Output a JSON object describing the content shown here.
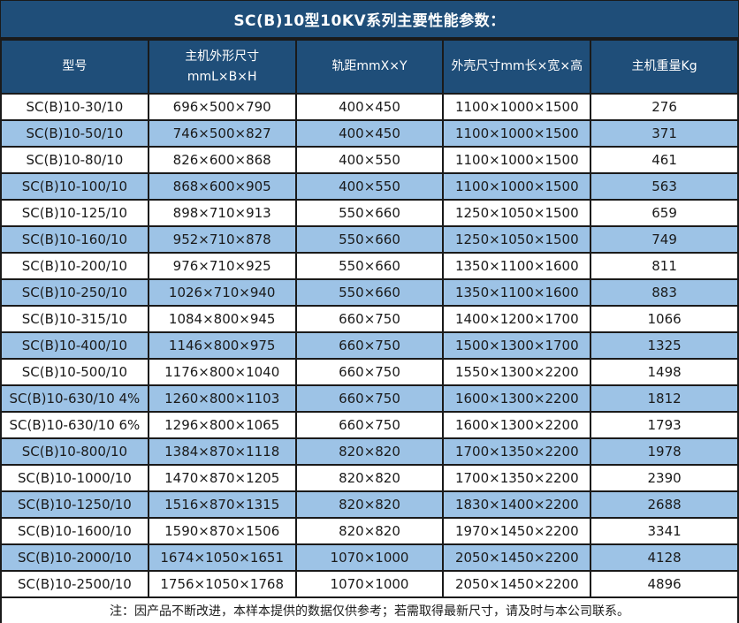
{
  "title": "SC(B)10型10KV系列主要性能参数：",
  "note": "注：因产品不断改进，本样本提供的数据仅供参考；若需取得最新尺寸，请及时与本公司联系。",
  "colors": {
    "header_bg": "#1F4E79",
    "alt_row_bg": "#9DC3E6",
    "row_bg": "#FFFFFF",
    "border": "#1A1A1A",
    "header_text": "#FFFFFF",
    "body_text": "#1A1A1A"
  },
  "table": {
    "columns": [
      {
        "label": "型号"
      },
      {
        "label": "主机外形尺寸\nmmL×B×H"
      },
      {
        "label": "轨距mmX×Y"
      },
      {
        "label": "外壳尺寸mm长×宽×高"
      },
      {
        "label": "主机重量Kg"
      }
    ],
    "rows": [
      [
        "SC(B)10-30/10",
        "696×500×790",
        "400×450",
        "1100×1000×1500",
        "276"
      ],
      [
        "SC(B)10-50/10",
        "746×500×827",
        "400×450",
        "1100×1000×1500",
        "371"
      ],
      [
        "SC(B)10-80/10",
        "826×600×868",
        "400×550",
        "1100×1000×1500",
        "461"
      ],
      [
        "SC(B)10-100/10",
        "868×600×905",
        "400×550",
        "1100×1000×1500",
        "563"
      ],
      [
        "SC(B)10-125/10",
        "898×710×913",
        "550×660",
        "1250×1050×1500",
        "659"
      ],
      [
        "SC(B)10-160/10",
        "952×710×878",
        "550×660",
        "1250×1050×1500",
        "749"
      ],
      [
        "SC(B)10-200/10",
        "976×710×925",
        "550×660",
        "1350×1100×1600",
        "811"
      ],
      [
        "SC(B)10-250/10",
        "1026×710×940",
        "550×660",
        "1350×1100×1600",
        "883"
      ],
      [
        "SC(B)10-315/10",
        "1084×800×945",
        "660×750",
        "1400×1200×1700",
        "1066"
      ],
      [
        "SC(B)10-400/10",
        "1146×800×975",
        "660×750",
        "1500×1300×1700",
        "1325"
      ],
      [
        "SC(B)10-500/10",
        "1176×800×1040",
        "660×750",
        "1550×1300×2200",
        "1498"
      ],
      [
        "SC(B)10-630/10 4%",
        "1260×800×1103",
        "660×750",
        "1600×1300×2200",
        "1812"
      ],
      [
        "SC(B)10-630/10 6%",
        "1296×800×1065",
        "660×750",
        "1600×1300×2200",
        "1793"
      ],
      [
        "SC(B)10-800/10",
        "1384×870×1118",
        "820×820",
        "1700×1350×2200",
        "1978"
      ],
      [
        "SC(B)10-1000/10",
        "1470×870×1205",
        "820×820",
        "1700×1350×2200",
        "2390"
      ],
      [
        "SC(B)10-1250/10",
        "1516×870×1315",
        "820×820",
        "1830×1400×2200",
        "2688"
      ],
      [
        "SC(B)10-1600/10",
        "1590×870×1506",
        "820×820",
        "1970×1450×2200",
        "3341"
      ],
      [
        "SC(B)10-2000/10",
        "1674×1050×1651",
        "1070×1000",
        "2050×1450×2200",
        "4128"
      ],
      [
        "SC(B)10-2500/10",
        "1756×1050×1768",
        "1070×1000",
        "2050×1450×2200",
        "4896"
      ]
    ]
  }
}
